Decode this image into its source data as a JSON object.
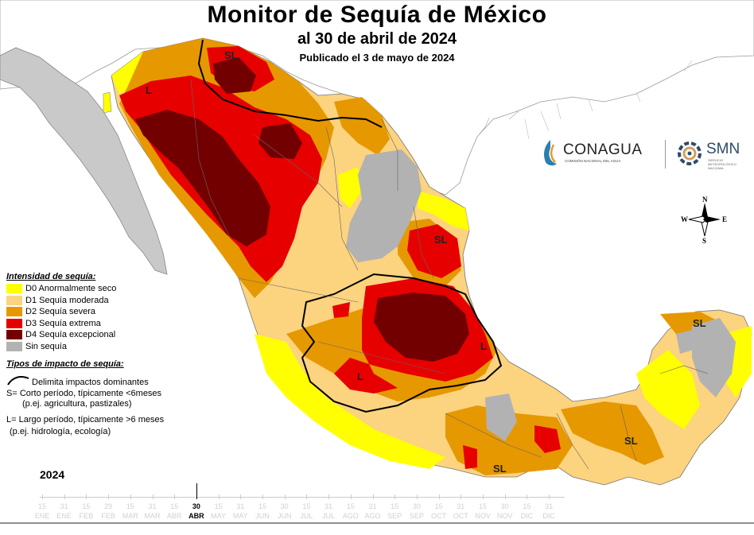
{
  "title": "Monitor de Sequía de México",
  "subtitle": "al 30 de abril de 2024",
  "published": "Publicado el 3 de mayo de 2024",
  "legend": {
    "heading": "Intensidad de sequía:",
    "items": [
      {
        "label": "D0 Anormalmente seco",
        "color": "#ffff00"
      },
      {
        "label": "D1 Sequía moderada",
        "color": "#fcd37f"
      },
      {
        "label": "D2 Sequía severa",
        "color": "#e69800"
      },
      {
        "label": "D3 Sequía extrema",
        "color": "#e60000"
      },
      {
        "label": "D4 Sequía excepcional",
        "color": "#730000"
      },
      {
        "label": "Sin sequía",
        "color": "#b2b2b2"
      }
    ]
  },
  "impact": {
    "heading": "Tipos de impacto de sequía:",
    "line": "Delimita impactos dominantes",
    "short1": "S= Corto período, típicamente <6meses",
    "short2": "(p.ej. agricultura, pastizales)",
    "long1": "L= Largo período, típicamente >6 meses",
    "long2": "(p.ej. hidrología, ecología)"
  },
  "map_labels": {
    "sl": "SL",
    "l": "L"
  },
  "logos": {
    "conagua": "CONAGUA",
    "conagua_sub": "COMISIÓN NACIONAL DEL AGUA",
    "smn": "SMN",
    "smn_sub1": "SERVICIO",
    "smn_sub2": "METEOROLÓGICO",
    "smn_sub3": "NACIONAL"
  },
  "compass": {
    "n": "N",
    "s": "S",
    "e": "E",
    "w": "W"
  },
  "timeline": {
    "year": "2024",
    "days": [
      "15",
      "31",
      "15",
      "29",
      "15",
      "31",
      "15",
      "30",
      "15",
      "31",
      "15",
      "30",
      "15",
      "31",
      "15",
      "31",
      "15",
      "30",
      "15",
      "31",
      "15",
      "30",
      "15",
      "31"
    ],
    "months": [
      "ENE",
      "ENE",
      "FEB",
      "FEB",
      "MAR",
      "MAR",
      "ABR",
      "ABR",
      "MAY",
      "MAY",
      "JUN",
      "JUN",
      "JUL",
      "JUL",
      "AGO",
      "AGO",
      "SEP",
      "SEP",
      "OCT",
      "OCT",
      "NOV",
      "NOV",
      "DIC",
      "DIC"
    ],
    "selected_index": 7
  }
}
